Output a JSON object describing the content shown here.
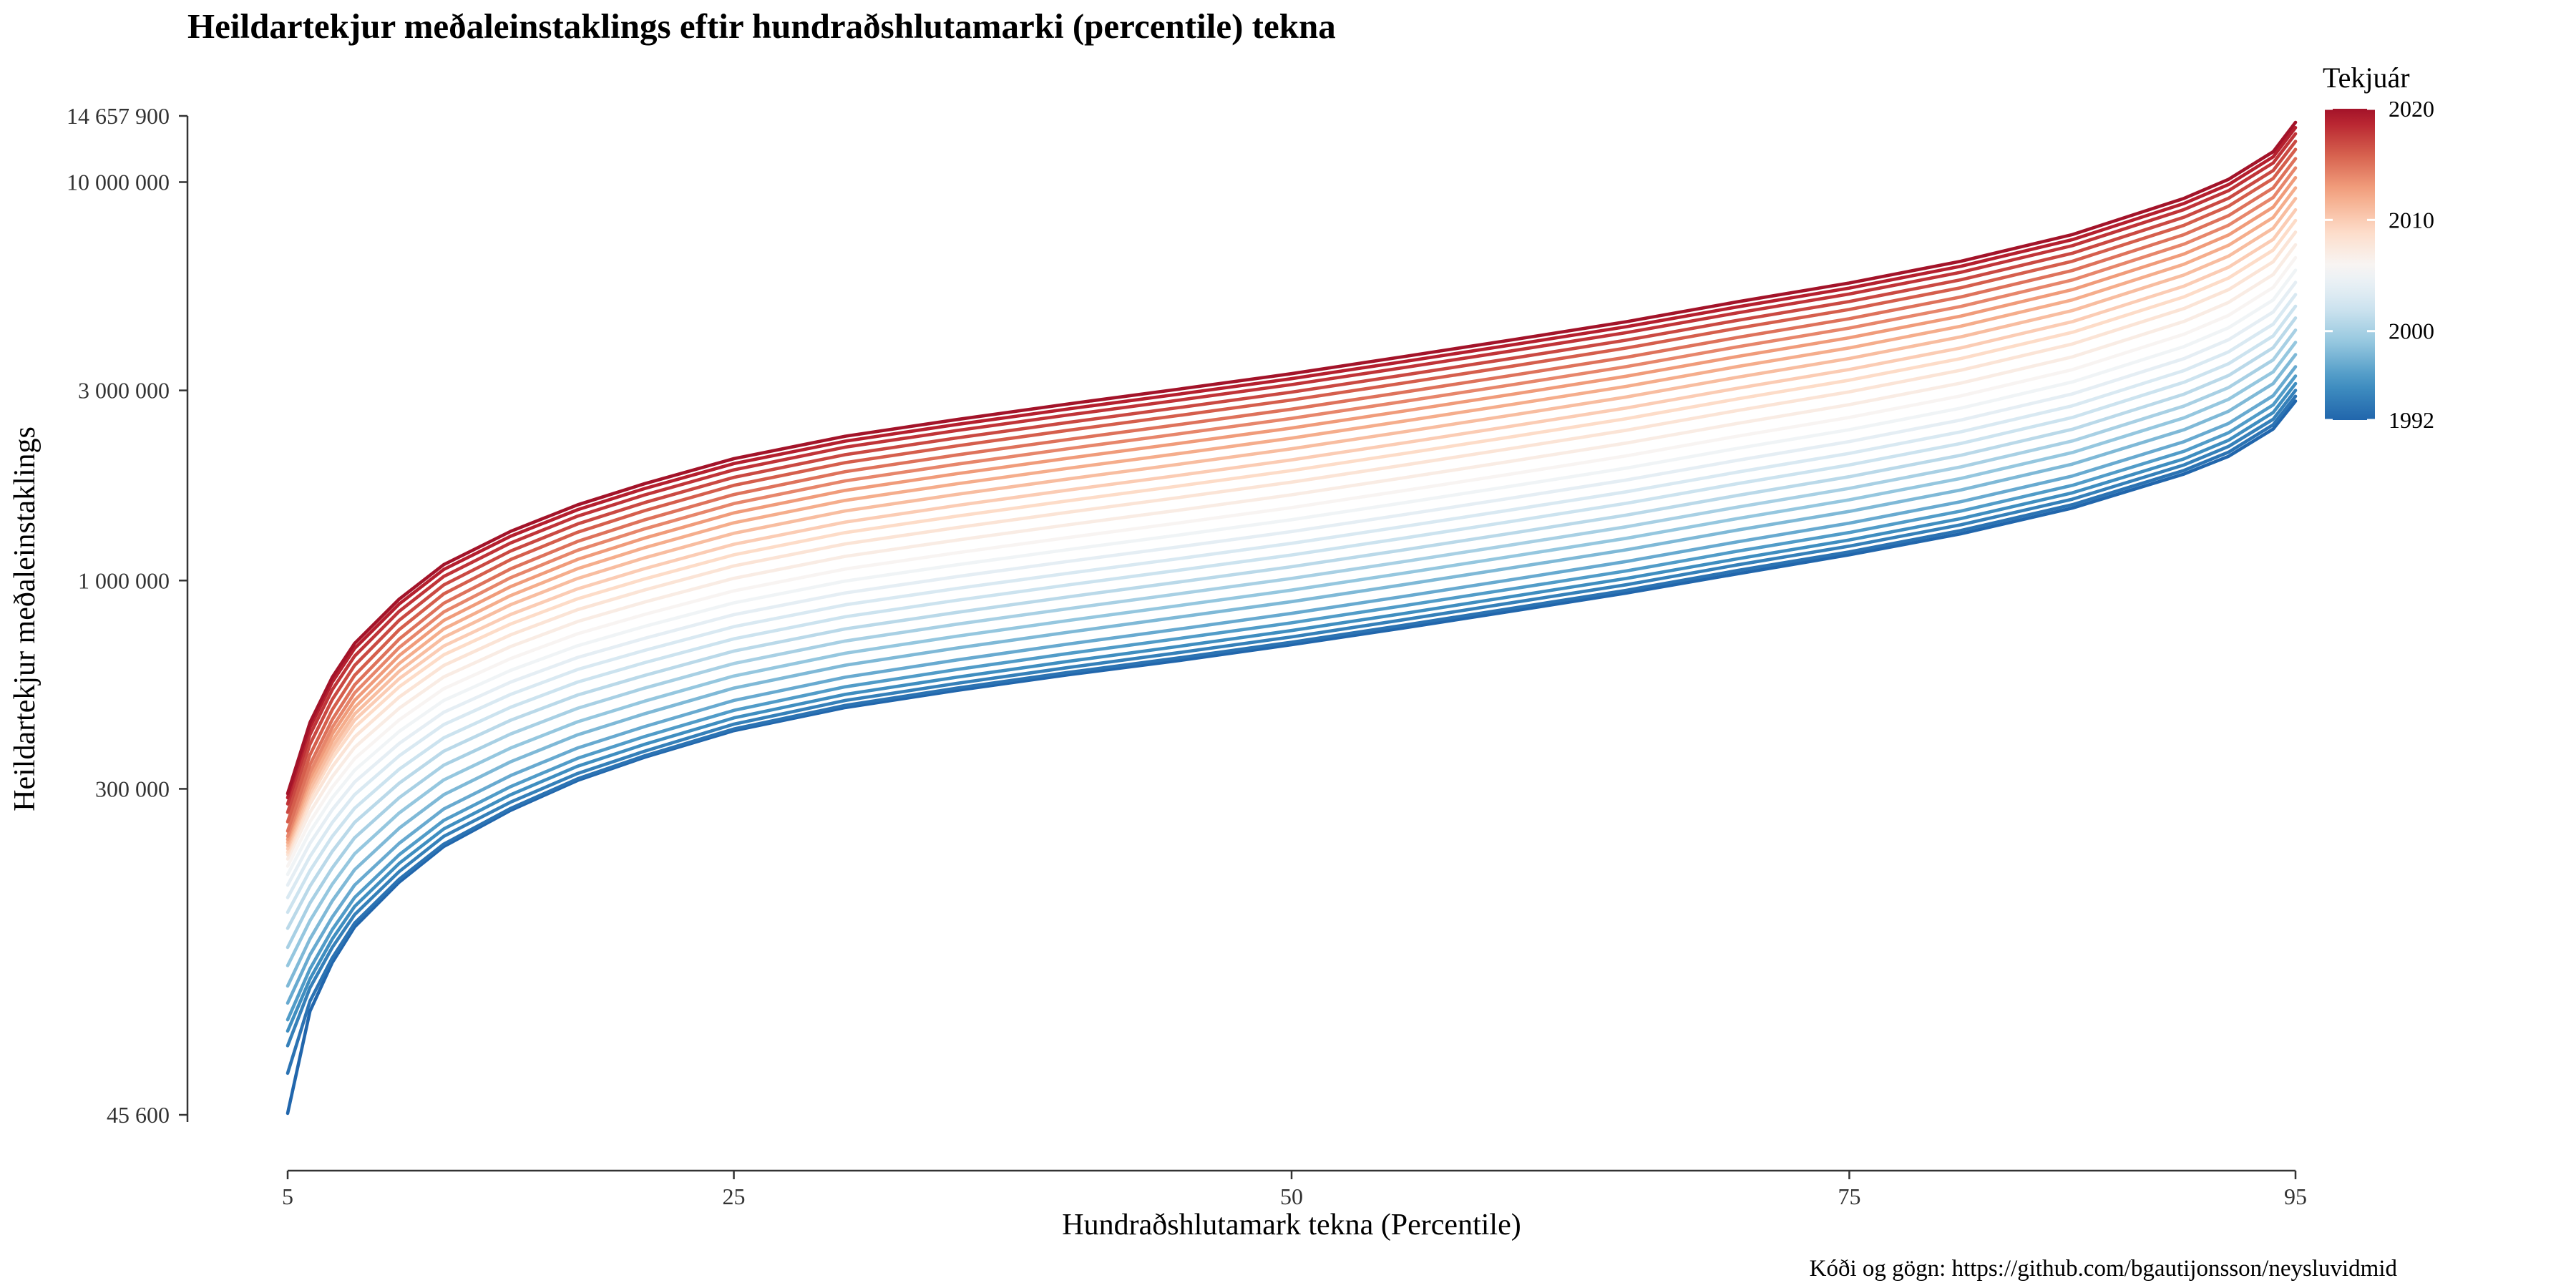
{
  "chart_data": {
    "type": "line",
    "title": "Heildartekjur meðaleinstaklings eftir hundraðshlutamarki (percentile) tekna",
    "xlabel": "Hundraðshlutamark tekna (Percentile)",
    "ylabel": "Heildartekjur meðaleinstaklings",
    "caption": "Kóði og gögn: https://github.com/bgautijonsson/neysluvidmid",
    "y_scale": "log",
    "ylim": [
      45600,
      14657900
    ],
    "xlim": [
      5,
      95
    ],
    "x_ticks": [
      5,
      25,
      50,
      75,
      95
    ],
    "x_tick_labels": [
      "5",
      "25",
      "50",
      "75",
      "95"
    ],
    "y_ticks": [
      45600,
      300000,
      1000000,
      3000000,
      10000000,
      14657900
    ],
    "y_tick_labels": [
      "45 600",
      "300 000",
      "1 000 000",
      "3 000 000",
      "10 000 000",
      "14 657 900"
    ],
    "legend": {
      "title": "Tekjuár",
      "position": "right",
      "min": 1992,
      "max": 2020,
      "tick_values": [
        2020,
        2010,
        2000,
        1992
      ],
      "tick_labels": [
        "2020",
        "2010",
        "2000",
        "1992"
      ],
      "colors": [
        "#053061",
        "#2166ac",
        "#4393c3",
        "#92c5de",
        "#d1e5f0",
        "#f7f7f7",
        "#fddbc7",
        "#f4a582",
        "#d6604d",
        "#b2182b",
        "#67001f"
      ]
    },
    "x": [
      5,
      6,
      7,
      8,
      10,
      12,
      15,
      18,
      21,
      25,
      30,
      35,
      40,
      45,
      50,
      55,
      60,
      65,
      70,
      75,
      80,
      85,
      90,
      92,
      94,
      95
    ],
    "x_note": "Series values below are indexed by the x array above.",
    "series": [
      {
        "year": 1992,
        "values": [
          46000,
          83000,
          110000,
          135000,
          175000,
          215000,
          265000,
          315000,
          360000,
          420000,
          480000,
          530000,
          580000,
          630000,
          690000,
          760000,
          840000,
          930000,
          1040000,
          1160000,
          1310000,
          1520000,
          1850000,
          2050000,
          2400000,
          2820000
        ]
      },
      {
        "year": 1993,
        "values": [
          58000,
          88000,
          113000,
          138000,
          178000,
          218000,
          268000,
          318000,
          363000,
          424000,
          486000,
          537000,
          588000,
          640000,
          700000,
          772000,
          854000,
          945000,
          1060000,
          1180000,
          1335000,
          1550000,
          1890000,
          2100000,
          2460000,
          2900000
        ]
      },
      {
        "year": 1994,
        "values": [
          68000,
          95000,
          120000,
          145000,
          186000,
          228000,
          278000,
          328000,
          373000,
          436000,
          500000,
          552000,
          605000,
          660000,
          722000,
          797000,
          882000,
          976000,
          1095000,
          1220000,
          1380000,
          1600000,
          1950000,
          2170000,
          2540000,
          3000000
        ]
      },
      {
        "year": 1995,
        "values": [
          74000,
          100000,
          126000,
          152000,
          195000,
          238000,
          290000,
          342000,
          388000,
          452000,
          518000,
          572000,
          627000,
          684000,
          749000,
          826000,
          914000,
          1012000,
          1134000,
          1264000,
          1430000,
          1660000,
          2020000,
          2250000,
          2640000,
          3120000
        ]
      },
      {
        "year": 1996,
        "values": [
          79000,
          106000,
          133000,
          160000,
          205000,
          250000,
          304000,
          358000,
          406000,
          472000,
          541000,
          598000,
          656000,
          716000,
          783000,
          864000,
          955000,
          1057000,
          1185000,
          1320000,
          1494000,
          1733000,
          2110000,
          2350000,
          2760000,
          3260000
        ]
      },
      {
        "year": 1997,
        "values": [
          87000,
          115000,
          143000,
          172000,
          219000,
          267000,
          324000,
          380000,
          430000,
          500000,
          572000,
          632000,
          693000,
          756000,
          827000,
          912000,
          1008000,
          1116000,
          1251000,
          1393000,
          1577000,
          1830000,
          2230000,
          2480000,
          2910000,
          3440000
        ]
      },
      {
        "year": 1998,
        "values": [
          96000,
          126000,
          157000,
          188000,
          239000,
          290000,
          351000,
          410000,
          463000,
          537000,
          613000,
          677000,
          742000,
          810000,
          885000,
          976000,
          1079000,
          1194000,
          1339000,
          1491000,
          1688000,
          1960000,
          2390000,
          2660000,
          3120000,
          3690000
        ]
      },
      {
        "year": 1999,
        "values": [
          108000,
          140000,
          173000,
          206000,
          261000,
          316000,
          380000,
          442000,
          498000,
          576000,
          657000,
          725000,
          794000,
          866000,
          946000,
          1043000,
          1153000,
          1276000,
          1431000,
          1594000,
          1804000,
          2095000,
          2560000,
          2850000,
          3340000,
          3960000
        ]
      },
      {
        "year": 2000,
        "values": [
          120000,
          155000,
          190000,
          226000,
          285000,
          344000,
          412000,
          478000,
          537000,
          619000,
          705000,
          777000,
          850000,
          927000,
          1012000,
          1115000,
          1232000,
          1364000,
          1529000,
          1703000,
          1928000,
          2240000,
          2740000,
          3050000,
          3580000,
          4250000
        ]
      },
      {
        "year": 2001,
        "values": [
          134000,
          171000,
          209000,
          247000,
          310000,
          373000,
          446000,
          516000,
          578000,
          665000,
          756000,
          832000,
          910000,
          992000,
          1083000,
          1193000,
          1318000,
          1459000,
          1636000,
          1822000,
          2063000,
          2397000,
          2935000,
          3270000,
          3840000,
          4560000
        ]
      },
      {
        "year": 2002,
        "values": [
          147000,
          187000,
          228000,
          268000,
          336000,
          403000,
          481000,
          556000,
          622000,
          714000,
          811000,
          892000,
          975000,
          1062000,
          1159000,
          1277000,
          1411000,
          1562000,
          1751000,
          1950000,
          2208000,
          2566000,
          3145000,
          3500000,
          4110000,
          4880000
        ]
      },
      {
        "year": 2003,
        "values": [
          160000,
          203000,
          247000,
          290000,
          363000,
          435000,
          518000,
          598000,
          668000,
          766000,
          869000,
          955000,
          1043000,
          1136000,
          1240000,
          1366000,
          1509000,
          1670000,
          1872000,
          2085000,
          2361000,
          2745000,
          3365000,
          3750000,
          4400000,
          5220000
        ]
      },
      {
        "year": 2004,
        "values": [
          172000,
          219000,
          266000,
          312000,
          390000,
          467000,
          556000,
          641000,
          716000,
          821000,
          931000,
          1023000,
          1117000,
          1216000,
          1327000,
          1462000,
          1615000,
          1788000,
          2004000,
          2232000,
          2528000,
          2940000,
          3605000,
          4020000,
          4720000,
          5600000
        ]
      },
      {
        "year": 2005,
        "values": [
          183000,
          234000,
          285000,
          334000,
          418000,
          500000,
          595000,
          686000,
          767000,
          879000,
          997000,
          1095000,
          1196000,
          1302000,
          1421000,
          1566000,
          1730000,
          1915000,
          2147000,
          2391000,
          2708000,
          3150000,
          3865000,
          4310000,
          5060000,
          6010000
        ]
      },
      {
        "year": 2006,
        "values": [
          192000,
          248000,
          303000,
          357000,
          447000,
          535000,
          637000,
          735000,
          822000,
          942000,
          1069000,
          1174000,
          1282000,
          1396000,
          1524000,
          1680000,
          1856000,
          2055000,
          2304000,
          2566000,
          2906000,
          3382000,
          4150000,
          4630000,
          5440000,
          6460000
        ]
      },
      {
        "year": 2007,
        "values": [
          200000,
          262000,
          322000,
          381000,
          478000,
          573000,
          683000,
          789000,
          883000,
          1013000,
          1150000,
          1263000,
          1380000,
          1503000,
          1641000,
          1809000,
          1999000,
          2213000,
          2481000,
          2763000,
          3129000,
          3642000,
          4470000,
          4990000,
          5860000,
          6960000
        ]
      },
      {
        "year": 2008,
        "values": [
          205000,
          275000,
          341000,
          405000,
          510000,
          612000,
          731000,
          845000,
          947000,
          1088000,
          1236000,
          1358000,
          1484000,
          1617000,
          1766000,
          1947000,
          2152000,
          2383000,
          2672000,
          2976000,
          3371000,
          3924000,
          4815000,
          5370000,
          6310000,
          7490000
        ]
      },
      {
        "year": 2009,
        "values": [
          208000,
          285000,
          358000,
          428000,
          541000,
          651000,
          778000,
          900000,
          1009000,
          1160000,
          1319000,
          1451000,
          1586000,
          1728000,
          1888000,
          2082000,
          2301000,
          2548000,
          2857000,
          3183000,
          3606000,
          4198000,
          5150000,
          5745000,
          6750000,
          8010000
        ]
      },
      {
        "year": 2010,
        "values": [
          212000,
          292000,
          370000,
          446000,
          567000,
          685000,
          822000,
          953000,
          1071000,
          1233000,
          1402000,
          1543000,
          1687000,
          1838000,
          2008000,
          2214000,
          2447000,
          2710000,
          3039000,
          3385000,
          3835000,
          4465000,
          5480000,
          6115000,
          7180000,
          8520000
        ]
      },
      {
        "year": 2011,
        "values": [
          216000,
          300000,
          382000,
          462000,
          592000,
          720000,
          870000,
          1012000,
          1140000,
          1314000,
          1495000,
          1645000,
          1799000,
          1960000,
          2141000,
          2360000,
          2608000,
          2888000,
          3239000,
          3608000,
          4088000,
          4760000,
          5845000,
          6520000,
          7660000,
          9090000
        ]
      },
      {
        "year": 2012,
        "values": [
          220000,
          310000,
          396000,
          480000,
          619000,
          756000,
          917000,
          1071000,
          1209000,
          1396000,
          1589000,
          1749000,
          1913000,
          2084000,
          2277000,
          2510000,
          2773000,
          3071000,
          3444000,
          3836000,
          4347000,
          5063000,
          6220000,
          6940000,
          8150000,
          9670000
        ]
      },
      {
        "year": 2013,
        "values": [
          224000,
          320000,
          412000,
          500000,
          648000,
          794000,
          966000,
          1130000,
          1278000,
          1478000,
          1684000,
          1854000,
          2028000,
          2210000,
          2414000,
          2661000,
          2940000,
          3256000,
          3652000,
          4068000,
          4610000,
          5370000,
          6600000,
          7365000,
          8650000,
          10260000
        ]
      },
      {
        "year": 2014,
        "values": [
          228000,
          330000,
          428000,
          522000,
          679000,
          834000,
          1017000,
          1191000,
          1348000,
          1560000,
          1779000,
          1959000,
          2143000,
          2336000,
          2552000,
          2813000,
          3108000,
          3442000,
          3861000,
          4301000,
          4875000,
          5680000,
          6985000,
          7795000,
          9150000,
          10850000
        ]
      },
      {
        "year": 2015,
        "values": [
          235000,
          345000,
          448000,
          547000,
          713000,
          877000,
          1070000,
          1254000,
          1420000,
          1644000,
          1876000,
          2066000,
          2260000,
          2464000,
          2692000,
          2968000,
          3280000,
          3633000,
          4076000,
          4541000,
          5148000,
          6000000,
          7380000,
          8240000,
          9670000,
          11450000
        ]
      },
      {
        "year": 2016,
        "values": [
          248000,
          365000,
          474000,
          578000,
          753000,
          926000,
          1129000,
          1322000,
          1497000,
          1733000,
          1977000,
          2178000,
          2383000,
          2598000,
          2839000,
          3130000,
          3459000,
          3832000,
          4299000,
          4790000,
          5431000,
          6330000,
          7790000,
          8700000,
          10210000,
          12080000
        ]
      },
      {
        "year": 2017,
        "values": [
          262000,
          388000,
          503000,
          612000,
          795000,
          975000,
          1186000,
          1387000,
          1569000,
          1815000,
          2070000,
          2280000,
          2494000,
          2719000,
          2971000,
          3276000,
          3620000,
          4011000,
          4500000,
          5014000,
          5686000,
          6630000,
          8160000,
          9110000,
          10690000,
          12650000
        ]
      },
      {
        "year": 2018,
        "values": [
          275000,
          410000,
          532000,
          646000,
          837000,
          1024000,
          1243000,
          1451000,
          1640000,
          1896000,
          2161000,
          2380000,
          2604000,
          2839000,
          3102000,
          3421000,
          3780000,
          4188000,
          4699000,
          5236000,
          5938000,
          6925000,
          8530000,
          9520000,
          11170000,
          13220000
        ]
      },
      {
        "year": 2019,
        "values": [
          285000,
          428000,
          556000,
          675000,
          873000,
          1066000,
          1292000,
          1506000,
          1701000,
          1965000,
          2238000,
          2464000,
          2696000,
          2939000,
          3211000,
          3541000,
          3913000,
          4335000,
          4864000,
          5420000,
          6147000,
          7170000,
          8835000,
          9860000,
          11570000,
          13700000
        ]
      },
      {
        "year": 2020,
        "values": [
          292000,
          440000,
          572000,
          695000,
          898000,
          1096000,
          1329000,
          1549000,
          1750000,
          2022000,
          2303000,
          2536000,
          2775000,
          3025000,
          3305000,
          3645000,
          4028000,
          4463000,
          5008000,
          5581000,
          6330000,
          7385000,
          9100000,
          10160000,
          11920000,
          14120000
        ]
      }
    ]
  }
}
